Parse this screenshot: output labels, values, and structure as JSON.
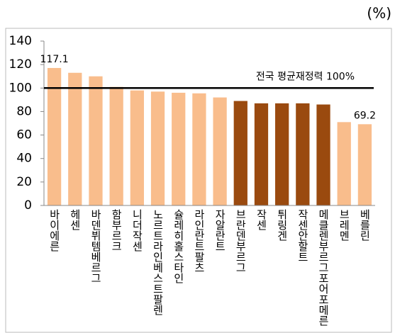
{
  "chart_data": {
    "type": "bar",
    "unit_label": "(%)",
    "categories": [
      "바이에른",
      "헤센",
      "바덴뷔템베르그",
      "함부르크",
      "니더작센",
      "노르트라인베스트팔렌",
      "슐레히홀스타인",
      "라인란트팔츠",
      "자알란트",
      "브란덴부르그",
      "작센",
      "튀링겐",
      "작센안할트",
      "메클렌부르그포어포메른",
      "브레멘",
      "베를린"
    ],
    "values": [
      117.1,
      113,
      110,
      101,
      98,
      97,
      96,
      95.5,
      92,
      89,
      87,
      87,
      87,
      86,
      71,
      69.2
    ],
    "value_labels": [
      "117.1",
      null,
      null,
      null,
      null,
      null,
      null,
      null,
      null,
      null,
      null,
      null,
      null,
      null,
      null,
      "69.2"
    ],
    "colors": [
      "#f9bd8c",
      "#f9bd8c",
      "#f9bd8c",
      "#f9bd8c",
      "#f9bd8c",
      "#f9bd8c",
      "#f9bd8c",
      "#f9bd8c",
      "#f9bd8c",
      "#9a4a0f",
      "#9a4a0f",
      "#9a4a0f",
      "#9a4a0f",
      "#9a4a0f",
      "#f9bd8c",
      "#f9bd8c"
    ],
    "ylim": [
      0,
      140
    ],
    "yticks": [
      0,
      20,
      40,
      60,
      80,
      100,
      120,
      140
    ],
    "reference_line": {
      "value": 100,
      "label": "전국 평균재정력 100%",
      "color": "#000000"
    }
  }
}
